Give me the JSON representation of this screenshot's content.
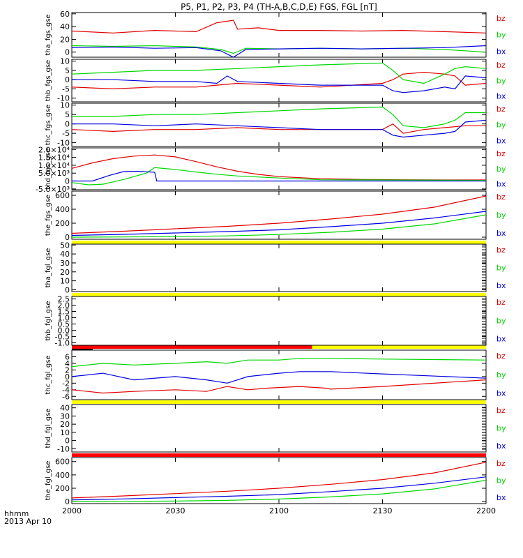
{
  "title": "P5, P1, P2, P3, P4 (TH-A,B,C,D,E) FGS, FGL [nT]",
  "x_footer": {
    "line1": "hhmm",
    "line2": "2013 Apr 10"
  },
  "colors": {
    "bz": "#e00000",
    "by": "#00d800",
    "bx": "#0000e0",
    "bar_yellow": "#ffff00",
    "bar_red": "#ff0000",
    "axis": "#000000"
  },
  "chart_data": [
    {
      "type": "line",
      "panel": 1,
      "ylabel": "tha_fgs_gse",
      "ylim": [
        -8,
        62
      ],
      "yticks": [
        "60",
        "40",
        "20",
        "0"
      ],
      "ytick_values": [
        60,
        40,
        20,
        0
      ],
      "xticks": [
        "2000",
        "2030",
        "2100",
        "2130",
        "2200"
      ],
      "series": [
        {
          "name": "bz",
          "color": "#e00000",
          "x": [
            0,
            20,
            40,
            60,
            70,
            78,
            80,
            90,
            100,
            120,
            140,
            160,
            180,
            200
          ],
          "y": [
            33,
            30,
            34,
            32,
            46,
            50,
            36,
            38,
            34,
            34,
            33,
            34,
            32,
            30
          ]
        },
        {
          "name": "by",
          "color": "#00d800",
          "x": [
            0,
            20,
            40,
            60,
            72,
            78,
            84,
            100,
            120,
            140,
            160,
            180,
            200
          ],
          "y": [
            10,
            9,
            10,
            8,
            4,
            -2,
            6,
            5,
            6,
            5,
            6,
            4,
            0
          ]
        },
        {
          "name": "bx",
          "color": "#0000e0",
          "x": [
            0,
            20,
            40,
            60,
            72,
            78,
            84,
            100,
            120,
            140,
            160,
            180,
            200
          ],
          "y": [
            7,
            8,
            6,
            7,
            2,
            -8,
            4,
            5,
            6,
            5,
            6,
            7,
            10
          ]
        }
      ]
    },
    {
      "type": "line",
      "panel": 2,
      "ylabel": "thb_fgs_gse",
      "ylim": [
        -12,
        11
      ],
      "yticks": [
        "10",
        "5",
        "0",
        "-5",
        "-10"
      ],
      "ytick_values": [
        10,
        5,
        0,
        -5,
        -10
      ],
      "xticks": [
        "2000",
        "2030",
        "2100",
        "2130",
        "2200"
      ],
      "series": [
        {
          "name": "bz",
          "color": "#e00000",
          "x": [
            0,
            20,
            40,
            60,
            70,
            80,
            100,
            120,
            150,
            155,
            160,
            170,
            180,
            185,
            190,
            200
          ],
          "y": [
            -4,
            -5,
            -4,
            -4,
            -3,
            -2,
            -3,
            -4,
            -2,
            0,
            3,
            4,
            3,
            2,
            -3,
            -2
          ]
        },
        {
          "name": "by",
          "color": "#00d800",
          "x": [
            0,
            20,
            40,
            60,
            80,
            100,
            120,
            150,
            155,
            160,
            170,
            180,
            185,
            190,
            200
          ],
          "y": [
            3,
            4,
            5,
            5,
            6,
            7,
            8,
            9,
            5,
            0,
            -2,
            3,
            6,
            7,
            6
          ]
        },
        {
          "name": "bx",
          "color": "#0000e0",
          "x": [
            0,
            20,
            40,
            60,
            70,
            75,
            80,
            100,
            120,
            150,
            155,
            160,
            170,
            180,
            185,
            190,
            200
          ],
          "y": [
            0,
            0,
            -1,
            -1,
            -2,
            2,
            -1,
            -2,
            -3,
            -3,
            -6,
            -7,
            -6,
            -4,
            -5,
            2,
            1
          ]
        }
      ]
    },
    {
      "type": "line",
      "panel": 3,
      "ylabel": "thc_fgs_gse",
      "ylim": [
        -12,
        11
      ],
      "yticks": [
        "10",
        "5",
        "0",
        "-5",
        "-10"
      ],
      "ytick_values": [
        10,
        5,
        0,
        -5,
        -10
      ],
      "xticks": [
        "2000",
        "2030",
        "2100",
        "2130",
        "2200"
      ],
      "series": [
        {
          "name": "bz",
          "color": "#e00000",
          "x": [
            0,
            20,
            40,
            60,
            80,
            100,
            120,
            150,
            155,
            160,
            170,
            180,
            190,
            200
          ],
          "y": [
            -3,
            -4,
            -3,
            -3,
            -2,
            -3,
            -3,
            -3,
            0,
            -5,
            -3,
            -2,
            -1,
            -1
          ]
        },
        {
          "name": "by",
          "color": "#00d800",
          "x": [
            0,
            20,
            40,
            60,
            80,
            100,
            120,
            150,
            155,
            160,
            170,
            180,
            185,
            190,
            200
          ],
          "y": [
            4,
            4,
            5,
            5,
            6,
            7,
            8,
            9,
            5,
            -1,
            -2,
            0,
            2,
            6,
            6
          ]
        },
        {
          "name": "bx",
          "color": "#0000e0",
          "x": [
            0,
            20,
            40,
            60,
            80,
            100,
            120,
            150,
            155,
            160,
            170,
            180,
            185,
            190,
            200
          ],
          "y": [
            0,
            0,
            -1,
            0,
            -1,
            -2,
            -3,
            -3,
            -6,
            -7,
            -6,
            -5,
            -4,
            1,
            2
          ]
        }
      ]
    },
    {
      "type": "line",
      "panel": 4,
      "ylabel": "thd_fgs_gse",
      "ylim": [
        -5500,
        21000
      ],
      "yticks": [
        "2.0×10⁴",
        "1.5×10⁴",
        "1.0×10⁴",
        "5.0×10³",
        "0",
        "-5.0×10³"
      ],
      "ytick_values": [
        20000,
        15000,
        10000,
        5000,
        0,
        -5000
      ],
      "xticks": [
        "2000",
        "2030",
        "2100",
        "2130",
        "2200"
      ],
      "series": [
        {
          "name": "bz",
          "color": "#e00000",
          "x": [
            0,
            10,
            20,
            30,
            40,
            50,
            60,
            70,
            80,
            90,
            100,
            120,
            140,
            160,
            180,
            200
          ],
          "y": [
            8000,
            11500,
            14200,
            15800,
            16500,
            15300,
            12300,
            9000,
            6200,
            4200,
            2800,
            1500,
            1000,
            800,
            700,
            700
          ]
        },
        {
          "name": "by",
          "color": "#00d800",
          "x": [
            0,
            8,
            15,
            25,
            36,
            40,
            50,
            60,
            70,
            80,
            100,
            120,
            200
          ],
          "y": [
            -1000,
            -2400,
            -2000,
            1000,
            5000,
            8500,
            7300,
            5700,
            4300,
            3200,
            1900,
            800,
            400
          ]
        },
        {
          "name": "bx",
          "color": "#0000e0",
          "x": [
            0,
            10,
            18,
            25,
            32,
            36,
            40,
            41,
            50,
            70,
            100,
            150,
            200
          ],
          "y": [
            0,
            0,
            3500,
            6000,
            6200,
            5800,
            5600,
            0,
            0,
            0,
            0,
            0,
            0
          ]
        }
      ]
    },
    {
      "type": "line",
      "panel": 5,
      "ylabel": "the_fgs_gse",
      "ylim": [
        -30,
        660
      ],
      "yticks": [
        "600",
        "400",
        "200",
        "0"
      ],
      "ytick_values": [
        600,
        400,
        200,
        0
      ],
      "xticks": [
        "2000",
        "2030",
        "2100",
        "2130",
        "2200"
      ],
      "series": [
        {
          "name": "bz",
          "color": "#e00000",
          "x": [
            0,
            25,
            50,
            75,
            100,
            125,
            150,
            175,
            200
          ],
          "y": [
            55,
            85,
            120,
            155,
            200,
            260,
            330,
            430,
            590
          ]
        },
        {
          "name": "by",
          "color": "#00d800",
          "x": [
            0,
            25,
            50,
            75,
            100,
            125,
            150,
            175,
            200
          ],
          "y": [
            0,
            3,
            8,
            18,
            38,
            70,
            115,
            190,
            320
          ]
        },
        {
          "name": "bx",
          "color": "#0000e0",
          "x": [
            0,
            25,
            50,
            75,
            100,
            125,
            150,
            175,
            200
          ],
          "y": [
            25,
            40,
            60,
            80,
            105,
            150,
            200,
            275,
            370
          ]
        }
      ]
    },
    {
      "type": "line",
      "panel": 6,
      "ylabel": "tha_fgl_gse",
      "ylim": [
        -2,
        51
      ],
      "yticks": [
        "50",
        "40",
        "30",
        "20",
        "10",
        "0"
      ],
      "ytick_values": [
        50,
        40,
        30,
        20,
        10,
        0
      ],
      "xticks": [
        "2000",
        "2030",
        "2100",
        "2130",
        "2200"
      ],
      "series": []
    },
    {
      "type": "line",
      "panel": 7,
      "ylabel": "thb_fgl_gse",
      "ylim": [
        -1.2,
        2.7
      ],
      "yticks": [
        "2.5",
        "2.0",
        "1.5",
        "1.0",
        "0.5",
        "0.0",
        "-0.5",
        "-1.0"
      ],
      "ytick_values": [
        2.5,
        2.0,
        1.5,
        1.0,
        0.5,
        0.0,
        -0.5,
        -1.0
      ],
      "xticks": [
        "2000",
        "2030",
        "2100",
        "2130",
        "2200"
      ],
      "series": []
    },
    {
      "type": "line",
      "panel": 8,
      "ylabel": "thc_fgl_gse",
      "ylim": [
        -7,
        8
      ],
      "yticks": [
        "6",
        "4",
        "2",
        "0",
        "-2",
        "-4",
        "-6"
      ],
      "ytick_values": [
        6,
        4,
        2,
        0,
        -2,
        -4,
        -6
      ],
      "xticks": [
        "2000",
        "2030",
        "2100",
        "2130",
        "2200"
      ],
      "series": [
        {
          "name": "bz",
          "color": "#e00000",
          "x": [
            0,
            15,
            30,
            50,
            65,
            75,
            85,
            95,
            110,
            122,
            125,
            150,
            200
          ],
          "y": [
            -4,
            -5,
            -4.5,
            -4,
            -4.5,
            -3,
            -4,
            -3.5,
            -3,
            -3.5,
            -3.8,
            -3,
            -1
          ]
        },
        {
          "name": "by",
          "color": "#00d800",
          "x": [
            0,
            15,
            30,
            50,
            65,
            75,
            85,
            100,
            110,
            122,
            125,
            150,
            200
          ],
          "y": [
            3,
            4,
            3.5,
            4,
            4.5,
            4,
            5,
            5,
            5.5,
            5.5,
            5.5,
            5.3,
            5
          ]
        },
        {
          "name": "bx",
          "color": "#0000e0",
          "x": [
            0,
            15,
            30,
            50,
            65,
            75,
            85,
            100,
            110,
            122,
            125,
            150,
            200
          ],
          "y": [
            0,
            1,
            -1,
            0,
            -1,
            -2,
            0,
            1,
            1.5,
            1.5,
            1.5,
            0.8,
            -0.5
          ]
        }
      ]
    },
    {
      "type": "line",
      "panel": 9,
      "ylabel": "thd_fgl_gse",
      "ylim": [
        -14,
        44
      ],
      "yticks": [
        "40",
        "30",
        "20",
        "10",
        "0",
        "-10"
      ],
      "ytick_values": [
        40,
        30,
        20,
        10,
        0,
        -10
      ],
      "xticks": [
        "2000",
        "2030",
        "2100",
        "2130",
        "2200"
      ],
      "series": []
    },
    {
      "type": "line",
      "panel": 10,
      "ylabel": "the_fgl_gse",
      "ylim": [
        -30,
        660
      ],
      "yticks": [
        "600",
        "400",
        "200",
        "0"
      ],
      "ytick_values": [
        600,
        400,
        200,
        0
      ],
      "xticks": [
        "2000",
        "2030",
        "2100",
        "2130",
        "2200"
      ],
      "series": [
        {
          "name": "bz",
          "color": "#e00000",
          "x": [
            0,
            25,
            50,
            75,
            100,
            125,
            150,
            175,
            200
          ],
          "y": [
            55,
            85,
            120,
            155,
            200,
            260,
            330,
            430,
            590
          ]
        },
        {
          "name": "by",
          "color": "#00d800",
          "x": [
            0,
            25,
            50,
            75,
            100,
            125,
            150,
            175,
            200
          ],
          "y": [
            0,
            3,
            8,
            18,
            38,
            70,
            115,
            190,
            320
          ]
        },
        {
          "name": "bx",
          "color": "#0000e0",
          "x": [
            0,
            25,
            50,
            75,
            100,
            125,
            150,
            175,
            200
          ],
          "y": [
            25,
            40,
            60,
            80,
            105,
            150,
            200,
            275,
            370
          ]
        }
      ]
    }
  ]
}
